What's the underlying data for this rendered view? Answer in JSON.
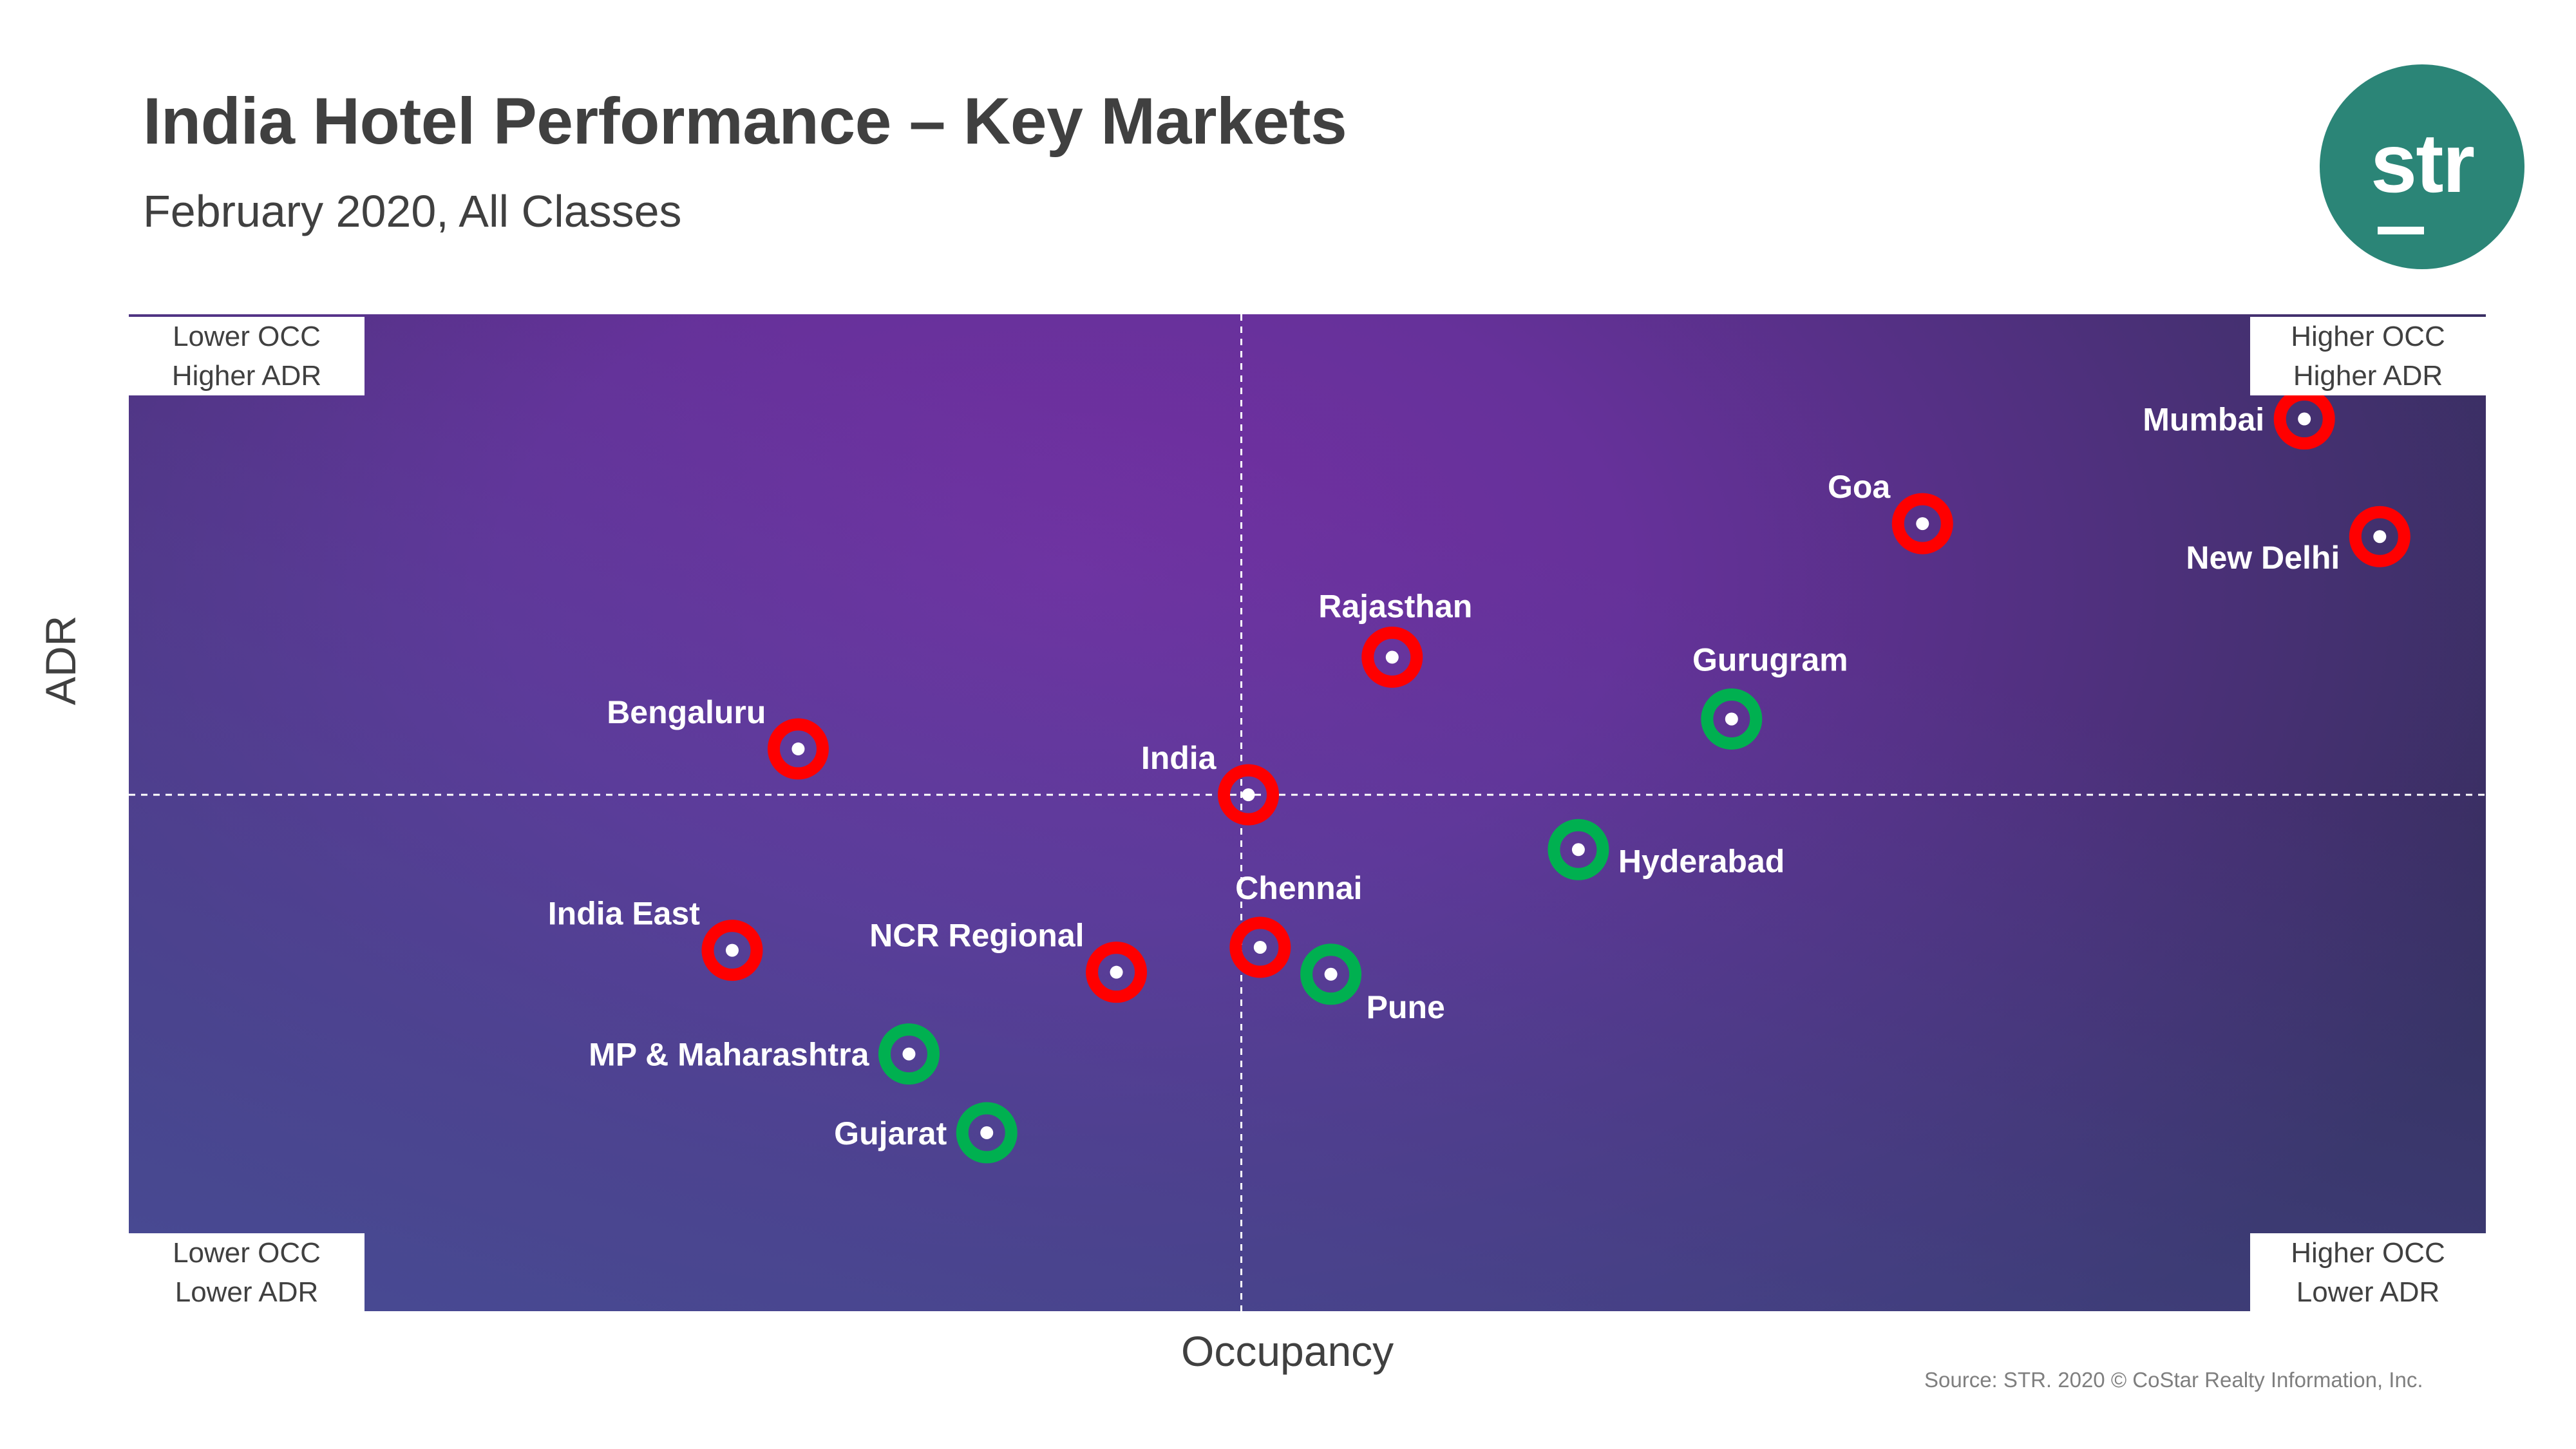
{
  "title": "India Hotel Performance – Key Markets",
  "subtitle": "February 2020, All Classes",
  "logo": {
    "text": "str",
    "color": "#2b8577"
  },
  "source": "Source: STR. 2020 © CoStar Realty Information, Inc.",
  "quadrants": {
    "top_left": [
      "Lower OCC",
      "Higher ADR"
    ],
    "top_right": [
      "Higher OCC",
      "Higher ADR"
    ],
    "bottom_left": [
      "Lower OCC",
      "Lower ADR"
    ],
    "bottom_right": [
      "Higher OCC",
      "Lower ADR"
    ]
  },
  "colors": {
    "background_light": "#7030a0",
    "background_dark": "#36305e",
    "red_marker": "#ff0000",
    "green_marker": "#00b050",
    "label": "#ffffff"
  },
  "chart_data": {
    "type": "scatter",
    "xlabel": "Occupancy",
    "ylabel": "ADR",
    "xlim": [
      0,
      100
    ],
    "ylim": [
      0,
      100
    ],
    "grid": false,
    "reference_lines": {
      "x": 47.2,
      "y": 51.8
    },
    "points": [
      {
        "label": "Mumbai",
        "x": 92.3,
        "y": 89.5,
        "color": "red",
        "label_pos": "left"
      },
      {
        "label": "New Delhi",
        "x": 95.5,
        "y": 77.7,
        "color": "red",
        "label_pos": "below-left"
      },
      {
        "label": "Goa",
        "x": 76.1,
        "y": 79.0,
        "color": "red",
        "label_pos": "above-left"
      },
      {
        "label": "Rajasthan",
        "x": 53.6,
        "y": 65.6,
        "color": "red",
        "label_pos": "above"
      },
      {
        "label": "Gurugram",
        "x": 68.0,
        "y": 59.4,
        "color": "green",
        "label_pos": "above-right"
      },
      {
        "label": "Bengaluru",
        "x": 28.4,
        "y": 56.4,
        "color": "red",
        "label_pos": "above-left"
      },
      {
        "label": "India",
        "x": 47.5,
        "y": 51.8,
        "color": "red",
        "label_pos": "above-left"
      },
      {
        "label": "Hyderabad",
        "x": 61.5,
        "y": 46.3,
        "color": "green",
        "label_pos": "right"
      },
      {
        "label": "Chennai",
        "x": 48.0,
        "y": 36.5,
        "color": "red",
        "label_pos": "above-right"
      },
      {
        "label": "Pune",
        "x": 51.0,
        "y": 33.8,
        "color": "green",
        "label_pos": "below-right"
      },
      {
        "label": "NCR Regional",
        "x": 41.9,
        "y": 34.0,
        "color": "red",
        "label_pos": "above-left"
      },
      {
        "label": "India East",
        "x": 25.6,
        "y": 36.2,
        "color": "red",
        "label_pos": "above-left"
      },
      {
        "label": "MP & Maharashtra",
        "x": 33.1,
        "y": 25.8,
        "color": "green",
        "label_pos": "left"
      },
      {
        "label": "Gujarat",
        "x": 36.4,
        "y": 17.9,
        "color": "green",
        "label_pos": "left"
      }
    ]
  }
}
